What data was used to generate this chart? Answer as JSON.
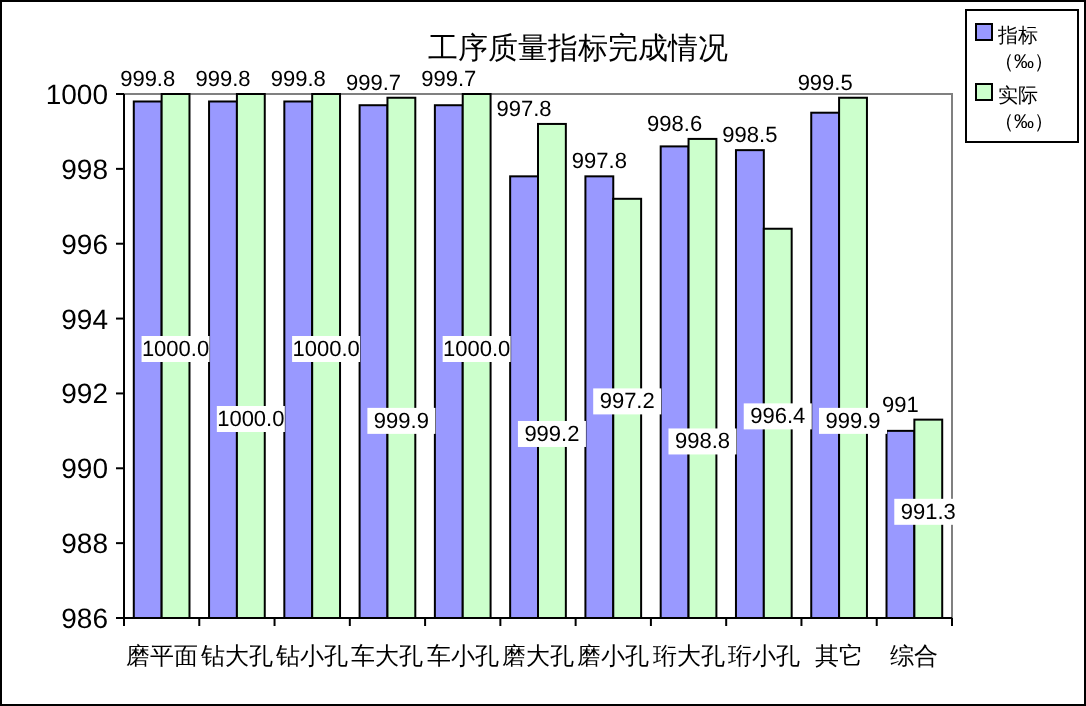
{
  "chart_data": {
    "type": "bar",
    "title": "工序质量指标完成情况",
    "categories": [
      "磨平面",
      "钻大孔",
      "钻小孔",
      "车大孔",
      "车小孔",
      "磨大孔",
      "磨小孔",
      "珩大孔",
      "珩小孔",
      "其它",
      "综合"
    ],
    "series": [
      {
        "name": "指标（‰）",
        "color": "#9999ff",
        "values": [
          999.8,
          999.8,
          999.8,
          999.7,
          999.7,
          997.8,
          997.8,
          998.6,
          998.5,
          999.5,
          991
        ],
        "value_labels": [
          "999.8",
          "999.8",
          "999.8",
          "999.7",
          "999.7",
          "997.8",
          "997.8",
          "998.6",
          "998.5",
          "999.5",
          "991"
        ]
      },
      {
        "name": "实际（‰）",
        "color": "#ccffcc",
        "values": [
          1000.0,
          1000.0,
          1000.0,
          999.9,
          1000.0,
          999.2,
          997.2,
          998.8,
          996.4,
          999.9,
          991.3
        ],
        "value_labels": [
          "1000.0",
          "1000.0",
          "1000.0",
          "999.9",
          "1000.0",
          "999.2",
          "997.2",
          "998.8",
          "996.4",
          "999.9",
          "991.3"
        ]
      }
    ],
    "ylim": [
      986,
      1000
    ],
    "yticks": [
      986,
      988,
      990,
      992,
      994,
      996,
      998,
      1000
    ],
    "grid": false,
    "legend": "top right"
  }
}
